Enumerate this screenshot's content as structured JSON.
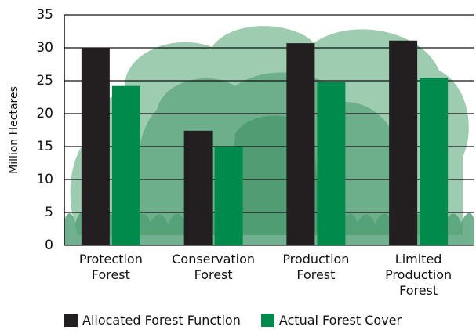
{
  "chart_data": {
    "type": "bar",
    "y_label": "Million Hectares",
    "categories": [
      "Protection Forest",
      "Conservation Forest",
      "Production Forest",
      "Limited Production Forest"
    ],
    "series": [
      {
        "name": "Allocated Forest Function",
        "color": "#231f20",
        "values": [
          30,
          17.4,
          30.7,
          31.1
        ]
      },
      {
        "name": "Actual Forest Cover",
        "color": "#008a4b",
        "values": [
          24.2,
          15,
          24.8,
          25.4
        ]
      }
    ],
    "ylim": [
      0,
      35
    ],
    "yticks": [
      0,
      5,
      10,
      15,
      20,
      25,
      30,
      35
    ],
    "grid": true
  }
}
